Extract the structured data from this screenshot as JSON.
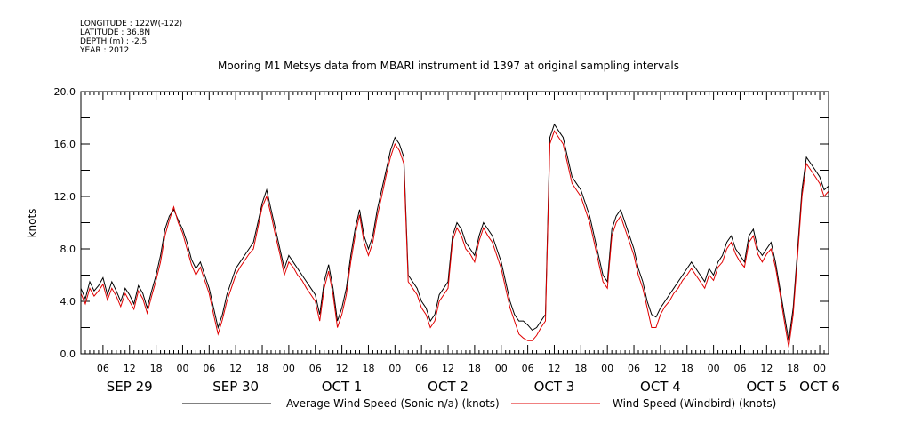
{
  "meta": {
    "longitude": "LONGITUDE : 122W(-122)",
    "latitude": "LATITUDE : 36.8N",
    "depth": "DEPTH (m) : -2.5",
    "year": "YEAR : 2012"
  },
  "colors": {
    "series_black": "#000000",
    "series_red": "#e00000",
    "axis": "#000000"
  },
  "chart_data": {
    "type": "line",
    "title": "Mooring M1 Metsys data from MBARI instrument id 1397 at original sampling intervals",
    "ylabel": "knots",
    "xlabel": "",
    "x_unit": "hours since SEP 29 00:00 (2012)",
    "xlim": [
      1,
      170
    ],
    "ylim": [
      0,
      20
    ],
    "yticks": [
      {
        "value": 0,
        "label": "0.0"
      },
      {
        "value": 4,
        "label": "4.0"
      },
      {
        "value": 8,
        "label": "8.0"
      },
      {
        "value": 12,
        "label": "12.0"
      },
      {
        "value": 16,
        "label": "16.0"
      },
      {
        "value": 20,
        "label": "20.0"
      }
    ],
    "hour_ticks": [
      {
        "x": 6,
        "label": "06"
      },
      {
        "x": 12,
        "label": "12"
      },
      {
        "x": 18,
        "label": "18"
      },
      {
        "x": 24,
        "label": "00"
      },
      {
        "x": 30,
        "label": "06"
      },
      {
        "x": 36,
        "label": "12"
      },
      {
        "x": 42,
        "label": "18"
      },
      {
        "x": 48,
        "label": "00"
      },
      {
        "x": 54,
        "label": "06"
      },
      {
        "x": 60,
        "label": "12"
      },
      {
        "x": 66,
        "label": "18"
      },
      {
        "x": 72,
        "label": "00"
      },
      {
        "x": 78,
        "label": "06"
      },
      {
        "x": 84,
        "label": "12"
      },
      {
        "x": 90,
        "label": "18"
      },
      {
        "x": 96,
        "label": "00"
      },
      {
        "x": 102,
        "label": "06"
      },
      {
        "x": 108,
        "label": "12"
      },
      {
        "x": 114,
        "label": "18"
      },
      {
        "x": 120,
        "label": "00"
      },
      {
        "x": 126,
        "label": "06"
      },
      {
        "x": 132,
        "label": "12"
      },
      {
        "x": 138,
        "label": "18"
      },
      {
        "x": 144,
        "label": "00"
      },
      {
        "x": 150,
        "label": "06"
      },
      {
        "x": 156,
        "label": "12"
      },
      {
        "x": 162,
        "label": "18"
      },
      {
        "x": 168,
        "label": "00"
      }
    ],
    "day_labels": [
      {
        "x": 12,
        "label": "SEP 29"
      },
      {
        "x": 36,
        "label": "SEP 30"
      },
      {
        "x": 60,
        "label": "OCT 1"
      },
      {
        "x": 84,
        "label": "OCT 2"
      },
      {
        "x": 108,
        "label": "OCT 3"
      },
      {
        "x": 132,
        "label": "OCT 4"
      },
      {
        "x": 156,
        "label": "OCT 5"
      },
      {
        "x": 168,
        "label": "OCT 6"
      }
    ],
    "legend_position": "bottom",
    "series": [
      {
        "name": "Average Wind Speed (Sonic-n/a) (knots)",
        "color": "#000000",
        "x": [
          1,
          2,
          3,
          4,
          5,
          6,
          7,
          8,
          9,
          10,
          11,
          12,
          13,
          14,
          15,
          16,
          17,
          18,
          19,
          20,
          21,
          22,
          23,
          24,
          25,
          26,
          27,
          28,
          29,
          30,
          31,
          32,
          33,
          34,
          35,
          36,
          37,
          38,
          39,
          40,
          41,
          42,
          43,
          44,
          45,
          46,
          47,
          48,
          49,
          50,
          51,
          52,
          53,
          54,
          55,
          56,
          57,
          58,
          59,
          60,
          61,
          62,
          63,
          64,
          65,
          66,
          67,
          68,
          69,
          70,
          71,
          72,
          73,
          74,
          75,
          76,
          77,
          78,
          79,
          80,
          81,
          82,
          83,
          84,
          85,
          86,
          87,
          88,
          89,
          90,
          91,
          92,
          93,
          94,
          95,
          96,
          97,
          98,
          99,
          100,
          101,
          102,
          103,
          104,
          105,
          106,
          107,
          108,
          109,
          110,
          111,
          112,
          113,
          114,
          115,
          116,
          117,
          118,
          119,
          120,
          121,
          122,
          123,
          124,
          125,
          126,
          127,
          128,
          129,
          130,
          131,
          132,
          133,
          134,
          135,
          136,
          137,
          138,
          139,
          140,
          141,
          142,
          143,
          144,
          145,
          146,
          147,
          148,
          149,
          150,
          151,
          152,
          153,
          154,
          155,
          156,
          157,
          158,
          159,
          160,
          161,
          162,
          163,
          164,
          165,
          166,
          167,
          168,
          169,
          170
        ],
        "y": [
          5.0,
          4.2,
          5.5,
          4.8,
          5.2,
          5.8,
          4.5,
          5.5,
          4.8,
          4.0,
          5.0,
          4.5,
          3.8,
          5.2,
          4.6,
          3.5,
          4.8,
          6.0,
          7.5,
          9.5,
          10.5,
          11.0,
          10.2,
          9.5,
          8.5,
          7.2,
          6.5,
          7.0,
          6.0,
          5.0,
          3.5,
          2.0,
          3.0,
          4.5,
          5.5,
          6.5,
          7.0,
          7.5,
          8.0,
          8.5,
          10.0,
          11.5,
          12.5,
          11.0,
          9.5,
          8.0,
          6.5,
          7.5,
          7.0,
          6.5,
          6.0,
          5.5,
          5.0,
          4.5,
          3.0,
          5.5,
          6.8,
          5.0,
          2.5,
          3.5,
          5.0,
          7.5,
          9.5,
          11.0,
          9.0,
          8.0,
          9.0,
          11.0,
          12.5,
          14.0,
          15.5,
          16.5,
          16.0,
          15.0,
          6.0,
          5.5,
          5.0,
          4.0,
          3.5,
          2.5,
          3.0,
          4.5,
          5.0,
          5.5,
          9.0,
          10.0,
          9.5,
          8.5,
          8.0,
          7.5,
          9.0,
          10.0,
          9.5,
          9.0,
          8.0,
          7.0,
          5.5,
          4.0,
          3.0,
          2.5,
          2.5,
          2.2,
          1.8,
          2.0,
          2.5,
          3.0,
          16.5,
          17.5,
          17.0,
          16.5,
          15.0,
          13.5,
          13.0,
          12.5,
          11.5,
          10.5,
          9.0,
          7.5,
          6.0,
          5.5,
          9.5,
          10.5,
          11.0,
          10.0,
          9.0,
          8.0,
          6.5,
          5.5,
          4.0,
          3.0,
          2.8,
          3.5,
          4.0,
          4.5,
          5.0,
          5.5,
          6.0,
          6.5,
          7.0,
          6.5,
          6.0,
          5.5,
          6.5,
          6.0,
          7.0,
          7.5,
          8.5,
          9.0,
          8.0,
          7.5,
          7.0,
          9.0,
          9.5,
          8.0,
          7.5,
          8.0,
          8.5,
          7.0,
          5.0,
          3.0,
          1.0,
          3.5,
          8.0,
          12.5,
          15.0,
          14.5,
          14.0,
          13.5,
          12.5,
          12.8
        ]
      },
      {
        "name": "Wind Speed (Windbird) (knots)",
        "color": "#e00000",
        "x": [
          1,
          2,
          3,
          4,
          5,
          6,
          7,
          8,
          9,
          10,
          11,
          12,
          13,
          14,
          15,
          16,
          17,
          18,
          19,
          20,
          21,
          22,
          23,
          24,
          25,
          26,
          27,
          28,
          29,
          30,
          31,
          32,
          33,
          34,
          35,
          36,
          37,
          38,
          39,
          40,
          41,
          42,
          43,
          44,
          45,
          46,
          47,
          48,
          49,
          50,
          51,
          52,
          53,
          54,
          55,
          56,
          57,
          58,
          59,
          60,
          61,
          62,
          63,
          64,
          65,
          66,
          67,
          68,
          69,
          70,
          71,
          72,
          73,
          74,
          75,
          76,
          77,
          78,
          79,
          80,
          81,
          82,
          83,
          84,
          85,
          86,
          87,
          88,
          89,
          90,
          91,
          92,
          93,
          94,
          95,
          96,
          97,
          98,
          99,
          100,
          101,
          102,
          103,
          104,
          105,
          106,
          107,
          108,
          109,
          110,
          111,
          112,
          113,
          114,
          115,
          116,
          117,
          118,
          119,
          120,
          121,
          122,
          123,
          124,
          125,
          126,
          127,
          128,
          129,
          130,
          131,
          132,
          133,
          134,
          135,
          136,
          137,
          138,
          139,
          140,
          141,
          142,
          143,
          144,
          145,
          146,
          147,
          148,
          149,
          150,
          151,
          152,
          153,
          154,
          155,
          156,
          157,
          158,
          159,
          160,
          161,
          162,
          163,
          164,
          165,
          166,
          167,
          168,
          169,
          170
        ],
        "y": [
          4.6,
          3.8,
          5.0,
          4.4,
          4.8,
          5.3,
          4.1,
          5.0,
          4.4,
          3.6,
          4.6,
          4.0,
          3.4,
          4.8,
          4.2,
          3.1,
          4.4,
          5.6,
          7.0,
          9.0,
          10.2,
          11.2,
          10.0,
          9.2,
          8.0,
          6.8,
          6.0,
          6.6,
          5.6,
          4.6,
          3.0,
          1.5,
          2.6,
          4.0,
          5.0,
          6.0,
          6.6,
          7.1,
          7.6,
          8.0,
          9.6,
          11.2,
          12.0,
          10.6,
          9.0,
          7.6,
          6.0,
          7.0,
          6.6,
          6.0,
          5.6,
          5.0,
          4.5,
          4.0,
          2.5,
          5.0,
          6.3,
          4.5,
          2.0,
          3.0,
          4.5,
          7.0,
          9.0,
          10.6,
          8.5,
          7.5,
          8.5,
          10.5,
          12.0,
          13.6,
          15.0,
          16.0,
          15.5,
          14.5,
          5.5,
          5.0,
          4.5,
          3.5,
          3.0,
          2.0,
          2.5,
          4.0,
          4.5,
          5.0,
          8.6,
          9.6,
          9.0,
          8.0,
          7.6,
          7.0,
          8.6,
          9.6,
          9.0,
          8.5,
          7.5,
          6.5,
          5.0,
          3.5,
          2.5,
          1.5,
          1.2,
          1.0,
          1.0,
          1.4,
          2.0,
          2.5,
          16.0,
          17.0,
          16.5,
          16.0,
          14.5,
          13.0,
          12.5,
          12.0,
          11.0,
          10.0,
          8.5,
          7.0,
          5.5,
          5.0,
          9.0,
          10.0,
          10.5,
          9.5,
          8.5,
          7.5,
          6.0,
          5.0,
          3.5,
          2.0,
          2.0,
          3.0,
          3.6,
          4.0,
          4.6,
          5.0,
          5.6,
          6.0,
          6.5,
          6.0,
          5.5,
          5.0,
          6.0,
          5.6,
          6.6,
          7.0,
          8.0,
          8.5,
          7.6,
          7.0,
          6.6,
          8.5,
          9.0,
          7.6,
          7.0,
          7.6,
          8.0,
          6.6,
          4.6,
          2.5,
          0.5,
          3.0,
          7.5,
          12.0,
          14.5,
          14.0,
          13.5,
          13.0,
          12.0,
          12.4
        ]
      }
    ]
  }
}
